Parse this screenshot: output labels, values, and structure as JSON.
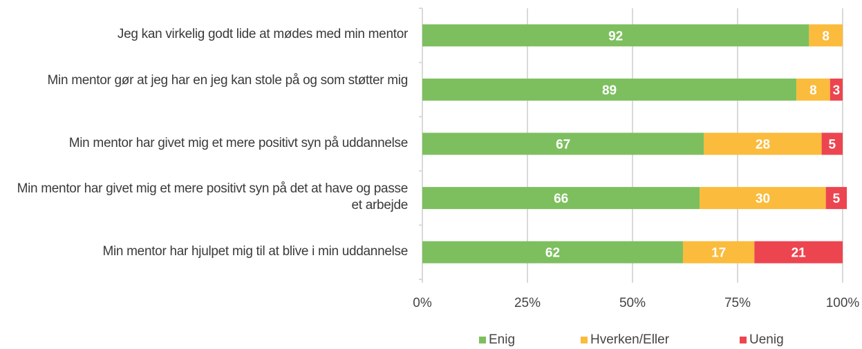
{
  "chart_data": {
    "type": "bar",
    "orientation": "horizontal",
    "stacked": true,
    "categories": [
      "Jeg kan virkelig godt lide at mødes med min mentor",
      "Min mentor gør at jeg har en jeg kan stole på og som støtter mig",
      "Min mentor har givet mig et mere positivt syn på uddannelse",
      "Min mentor har givet mig et mere positivt syn på det at have og passe et arbejde",
      "Min mentor har hjulpet mig til at blive i min uddannelse"
    ],
    "series": [
      {
        "name": "Enig",
        "color": "#7dbf5e",
        "values": [
          92,
          89,
          67,
          66,
          62
        ]
      },
      {
        "name": "Hverken/Eller",
        "color": "#fbbb3c",
        "values": [
          8,
          8,
          28,
          30,
          17
        ]
      },
      {
        "name": "Uenig",
        "color": "#ec4550",
        "values": [
          0,
          3,
          5,
          5,
          21
        ]
      }
    ],
    "xlim": [
      0,
      100
    ],
    "xticks": [
      "0%",
      "25%",
      "50%",
      "75%",
      "100%"
    ],
    "grid": true,
    "legend": "bottom"
  }
}
